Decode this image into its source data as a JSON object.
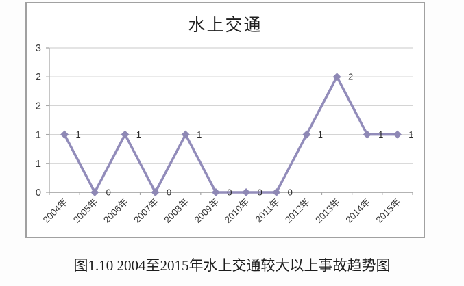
{
  "page": {
    "caption": "图1.10 2004至2015年水上交通较大以上事故趋势图"
  },
  "chart_data": {
    "type": "line",
    "title": "水上交通",
    "categories": [
      "2004年",
      "2005年",
      "2006年",
      "2007年",
      "2008年",
      "2009年",
      "2010年",
      "2011年",
      "2012年",
      "2013年",
      "2014年",
      "2015年"
    ],
    "series": [
      {
        "name": "水上交通",
        "values": [
          1,
          0,
          1,
          0,
          1,
          0,
          0,
          0,
          1,
          2,
          1,
          1
        ]
      }
    ],
    "data_labels_shown": true,
    "xlabel": "",
    "ylabel": "",
    "y_axis": {
      "min": 0,
      "max": 2.5,
      "step": 0.5,
      "tick_labels_bottom_to_top": [
        "0",
        "1",
        "1",
        "2",
        "2",
        "3"
      ]
    },
    "grid": true,
    "legend_position": "none",
    "colors": {
      "line": "#928cba",
      "marker": "#8e88b5",
      "gridline": "#d4d4d4",
      "axis": "#9d9d9d",
      "tick": "#a8a8a8",
      "border": "#a1a1a1",
      "label_text": "#2a2a2a"
    }
  }
}
